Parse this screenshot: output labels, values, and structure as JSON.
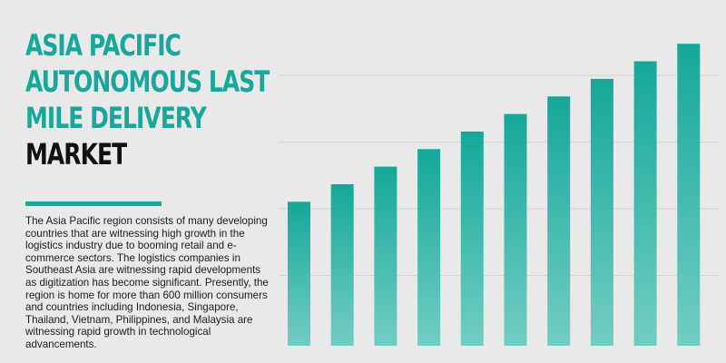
{
  "title": {
    "line1": "ASIA PACIFIC",
    "line2": "AUTONOMOUS LAST",
    "line3": "MILE DELIVERY",
    "line4": "MARKET"
  },
  "description": "The Asia Pacific region consists of many developing countries that are witnessing high growth in the logistics industry due to booming retail and e-commerce sectors. The logistics companies in Southeast Asia are witnessing rapid developments as digitization has become significant. Presently, the region is home for more than 600 million consumers and countries including Indonesia, Singapore, Thailand, Vietnam, Philippines, and Malaysia are witnessing rapid growth in technological advancements.",
  "colors": {
    "accent": "#19a79c",
    "bar_top": "#14a899",
    "bar_bottom": "#72cdc3",
    "background": "#e9e9e9",
    "grid": "#d3d3d3"
  },
  "chart_data": {
    "type": "bar",
    "categories": [
      "",
      "",
      "",
      "",
      "",
      "",
      "",
      "",
      "",
      ""
    ],
    "values": [
      20.5,
      23.0,
      25.5,
      28.0,
      30.5,
      33.0,
      35.5,
      38.0,
      40.5,
      43.0
    ],
    "title": "",
    "xlabel": "",
    "ylabel": "",
    "ylim": [
      0,
      46
    ],
    "grid": true,
    "gridlines_at": [
      10,
      19.5,
      29,
      38.5
    ],
    "axis_labels_shown": false
  }
}
